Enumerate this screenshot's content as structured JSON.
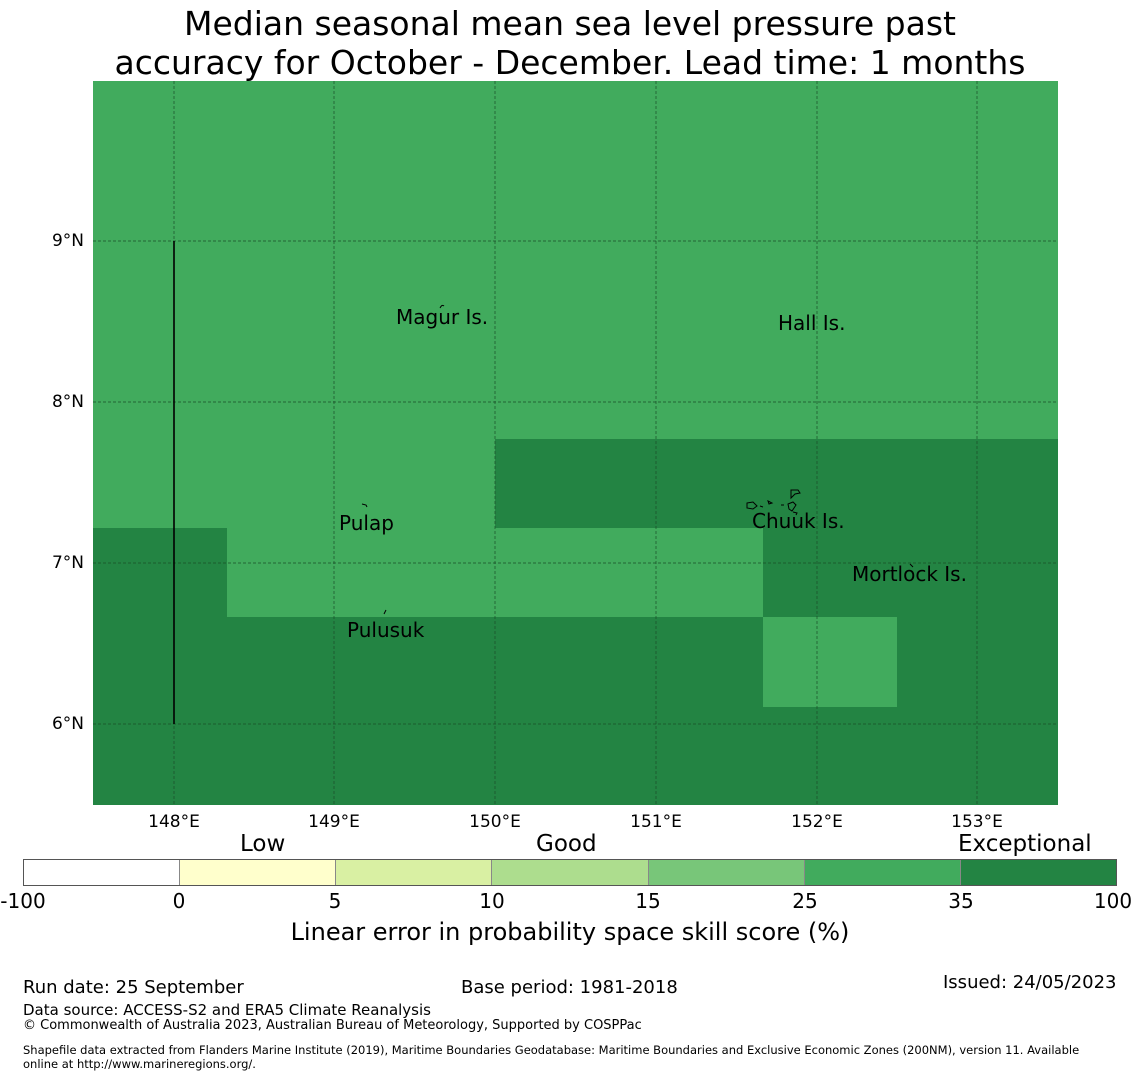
{
  "title": {
    "line1": "Median seasonal mean sea level pressure past",
    "line2": "accuracy for October - December. Lead time: 1 months"
  },
  "map": {
    "lat_labels": [
      "9°N",
      "8°N",
      "7°N",
      "6°N"
    ],
    "lon_labels": [
      "148°E",
      "149°E",
      "150°E",
      "151°E",
      "152°E",
      "153°E"
    ],
    "places": {
      "magur": "Magur Is.",
      "hall": "Hall Is.",
      "pulap": "Pulap",
      "chuuk": "Chuuk Is.",
      "mortlock": "Mortlock Is.",
      "pulusuk": "Pulusuk"
    },
    "colors": {
      "exceptional_25_35": "#41ab5d",
      "exceptional_35_100": "#238443",
      "grid": "#1a4d28"
    }
  },
  "legend": {
    "bands": {
      "low": "Low",
      "good": "Good",
      "exceptional": "Exceptional"
    },
    "ticks": [
      "-100",
      "0",
      "5",
      "10",
      "15",
      "25",
      "35",
      "100"
    ],
    "colors": [
      "#ffffff",
      "#ffffcc",
      "#d9f0a3",
      "#addd8e",
      "#78c679",
      "#41ab5d",
      "#238443"
    ],
    "title": "Linear error in probability space skill score (%)"
  },
  "footer": {
    "run_date": "Run date: 25 September",
    "base_period": "Base period: 1981-2018",
    "issued": "Issued: 24/05/2023",
    "data_source": "Data source: ACCESS-S2 and ERA5 Climate Reanalysis",
    "copyright": "© Commonwealth of Australia 2023, Australian Bureau of Meteorology, Supported by COSPPac",
    "shapefile_line1": "Shapefile data extracted from Flanders Marine Institute (2019), Maritime Boundaries Geodatabase: Maritime Boundaries and Exclusive Economic Zones (200NM), version 11. Available",
    "shapefile_line2": "online at http://www.marineregions.org/."
  }
}
